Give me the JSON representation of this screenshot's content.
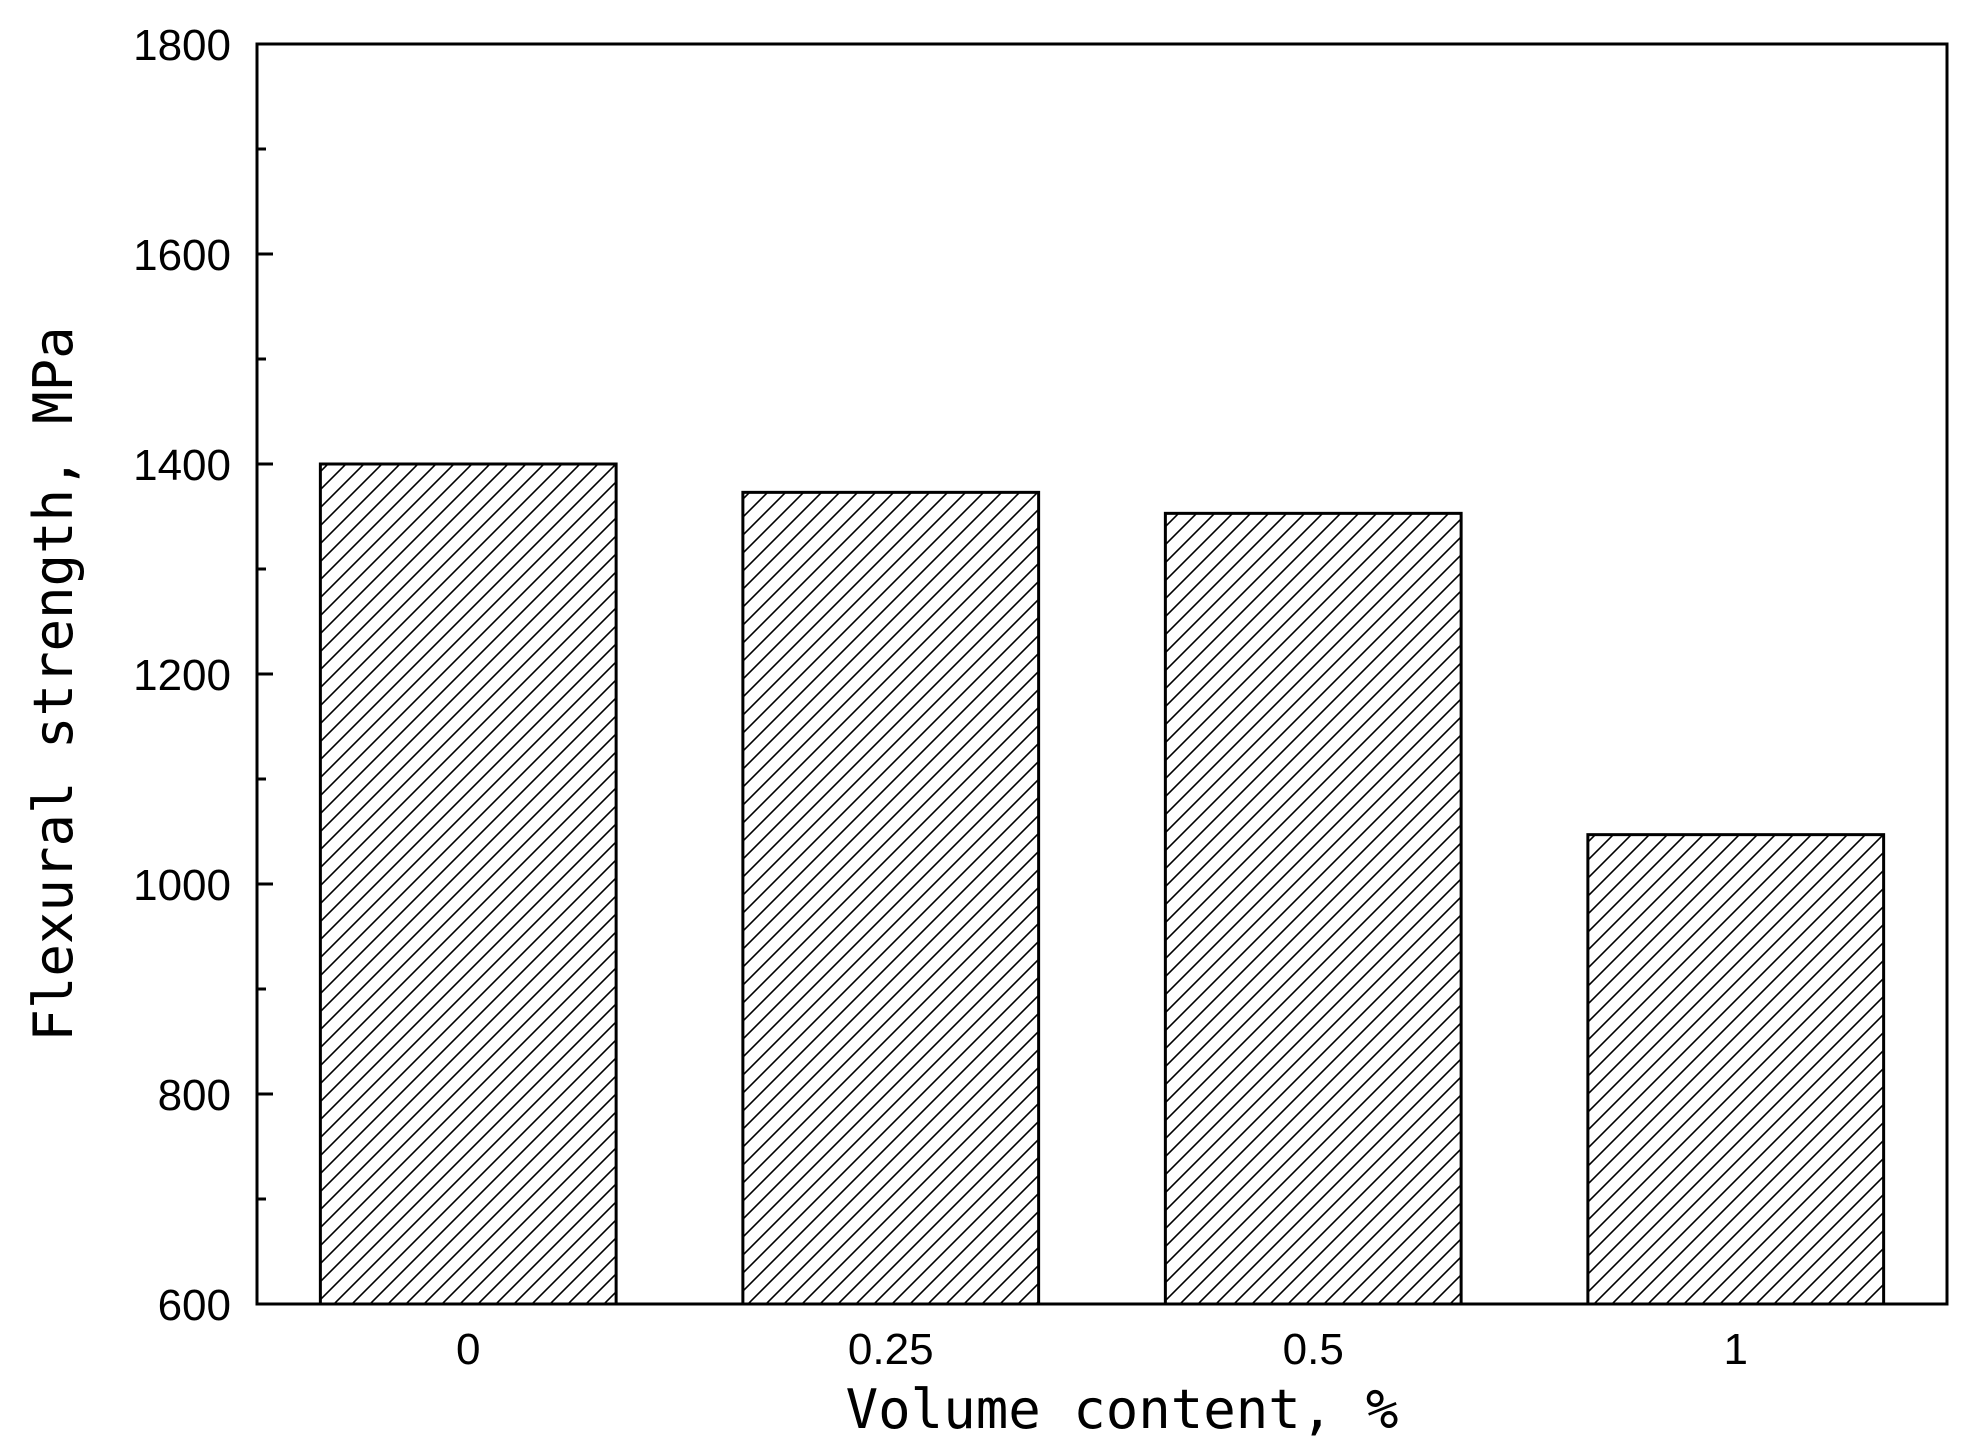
{
  "chart_data": {
    "type": "bar",
    "title": "",
    "xlabel": "Volume content, %",
    "ylabel": "Flexural strength, MPa",
    "categories": [
      "0",
      "0.25",
      "0.5",
      "1"
    ],
    "values": [
      1400,
      1373,
      1353,
      1047
    ],
    "ylim": [
      600,
      1800
    ],
    "yticks": [
      600,
      800,
      1000,
      1200,
      1400,
      1600,
      1800
    ],
    "y_minor_step": 100,
    "fill_pattern": "diagonal hatch",
    "bar_color": "#000000",
    "background_color": "#ffffff",
    "grid": false,
    "legend": "none"
  }
}
